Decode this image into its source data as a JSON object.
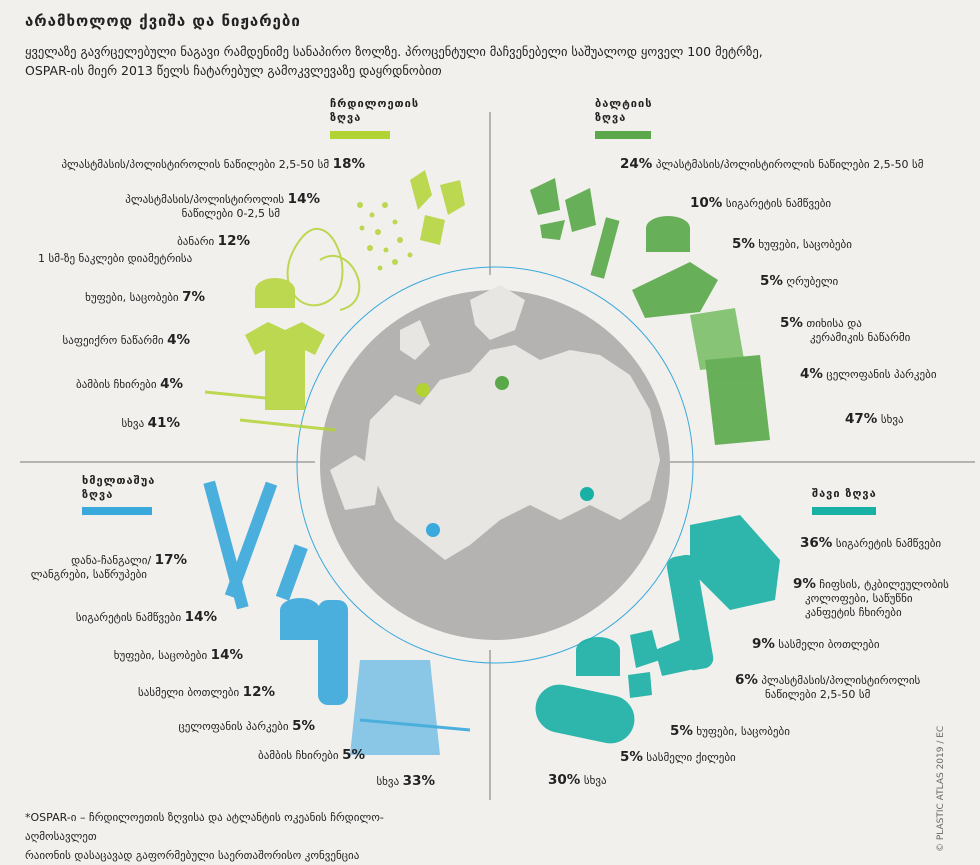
{
  "header": {
    "title": "არამხოლოდ ქვიშა და ნიჟარები",
    "subtitle_line1": "ყველაზე გავრცელებული ნაგავი რამდენიმე სანაპირო ზოლზე. პროცენტული მაჩვენებელი საშუალოდ ყოველ 100 მეტრზე,",
    "subtitle_line2": "OSPAR-ის მიერ 2013 წელს ჩატარებულ გამოკვლევაზე დაყრდნობით"
  },
  "colors": {
    "north_sea": "#b3d335",
    "baltic_sea": "#5aa84a",
    "mediterranean": "#3aa9dc",
    "black_sea": "#19b0a6",
    "globe": "#b5b3b1",
    "background": "#f2f0ed"
  },
  "chart_data": [
    {
      "type": "table",
      "name_line1": "ჩრდილოეთის",
      "name_line2": "ზღვა",
      "color": "#b3d335",
      "items": [
        {
          "label": "პლასტმასის/პოლისტიროლის ნაწილები 2,5-50 სმ",
          "label2": "",
          "value": 18,
          "display": "18%"
        },
        {
          "label": "პლასტმასის/პოლისტიროლის",
          "label2": "ნაწილები 0-2,5 სმ",
          "value": 14,
          "display": "14%"
        },
        {
          "label": "ბანარი",
          "label2": "1 სმ-ზე ნაკლები დიამეტრისა",
          "value": 12,
          "display": "12%"
        },
        {
          "label": "ხუფები, საცობები",
          "label2": "",
          "value": 7,
          "display": "7%"
        },
        {
          "label": "საფეიქრო ნაწარმი",
          "label2": "",
          "value": 4,
          "display": "4%"
        },
        {
          "label": "ბამბის ჩხირები",
          "label2": "",
          "value": 4,
          "display": "4%"
        },
        {
          "label": "სხვა",
          "label2": "",
          "value": 41,
          "display": "41%"
        }
      ]
    },
    {
      "type": "table",
      "name_line1": "ბალტიის",
      "name_line2": "ზღვა",
      "color": "#5aa84a",
      "items": [
        {
          "label": "პლასტმასის/პოლისტიროლის ნაწილები 2,5-50 სმ",
          "label2": "",
          "value": 24,
          "display": "24%"
        },
        {
          "label": "სიგარეტის ნამწვები",
          "label2": "",
          "value": 10,
          "display": "10%"
        },
        {
          "label": "ხუფები, საცობები",
          "label2": "",
          "value": 5,
          "display": "5%"
        },
        {
          "label": "ღრუბელი",
          "label2": "",
          "value": 5,
          "display": "5%"
        },
        {
          "label": "თიხისა და",
          "label2": "კერამიკის ნაწარმი",
          "value": 5,
          "display": "5%"
        },
        {
          "label": "ცელოფანის პარკები",
          "label2": "",
          "value": 4,
          "display": "4%"
        },
        {
          "label": "სხვა",
          "label2": "",
          "value": 47,
          "display": "47%"
        }
      ]
    },
    {
      "type": "table",
      "name_line1": "ხმელთაშუა",
      "name_line2": "ზღვა",
      "color": "#3aa9dc",
      "items": [
        {
          "label": "დანა-ჩანგალი/",
          "label2": "ლანგრები, საწრუპები",
          "value": 17,
          "display": "17%"
        },
        {
          "label": "სიგარეტის ნამწვები",
          "label2": "",
          "value": 14,
          "display": "14%"
        },
        {
          "label": "ხუფები, საცობები",
          "label2": "",
          "value": 14,
          "display": "14%"
        },
        {
          "label": "სასმელი ბოთლები",
          "label2": "",
          "value": 12,
          "display": "12%"
        },
        {
          "label": "ცელოფანის პარკები",
          "label2": "",
          "value": 5,
          "display": "5%"
        },
        {
          "label": "ბამბის ჩხირები",
          "label2": "",
          "value": 5,
          "display": "5%"
        },
        {
          "label": "სხვა",
          "label2": "",
          "value": 33,
          "display": "33%"
        }
      ]
    },
    {
      "type": "table",
      "name_line1": "შავი ზღვა",
      "name_line2": "",
      "color": "#19b0a6",
      "items": [
        {
          "label": "სიგარეტის ნამწვები",
          "label2": "",
          "value": 36,
          "display": "36%"
        },
        {
          "label": "ჩიფსის, ტკბილეულობის",
          "label2": "კოლოფები, საწუწნი",
          "label3": "კანფეტის ჩხირები",
          "value": 9,
          "display": "9%"
        },
        {
          "label": "სასმელი ბოთლები",
          "label2": "",
          "value": 9,
          "display": "9%"
        },
        {
          "label": "პლასტმასის/პოლისტიროლის",
          "label2": "ნაწილები 2,5-50 სმ",
          "value": 6,
          "display": "6%"
        },
        {
          "label": "ხუფები, საცობები",
          "label2": "",
          "value": 5,
          "display": "5%"
        },
        {
          "label": "სასმელი ქილები",
          "label2": "",
          "value": 5,
          "display": "5%"
        },
        {
          "label": "სხვა",
          "label2": "",
          "value": 30,
          "display": "30%"
        }
      ]
    }
  ],
  "footnote": {
    "line1": "*OSPAR-ი – ჩრდილოეთის ზღვისა და ატლანტის ოკეანის ჩრდილო-აღმოსავლეთ",
    "line2": "რაიონის დასაცავად გაფორმებული საერთაშორისო კონვენცია"
  },
  "credit": "© PLASTIC ATLAS 2019 / EC"
}
